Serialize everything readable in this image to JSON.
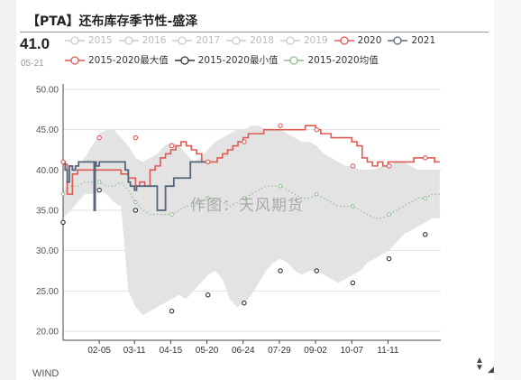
{
  "header": {
    "title": "【PTA】还布库存季节性-盛泽",
    "current_value": "41.0",
    "current_date": "05-21"
  },
  "legend": {
    "row1": [
      {
        "label": "2015",
        "color": "#cccccc",
        "active": false
      },
      {
        "label": "2016",
        "color": "#cccccc",
        "active": false
      },
      {
        "label": "2017",
        "color": "#cccccc",
        "active": false
      },
      {
        "label": "2018",
        "color": "#cccccc",
        "active": false
      },
      {
        "label": "2019",
        "color": "#cccccc",
        "active": false
      },
      {
        "label": "2020",
        "color": "#e05a55",
        "active": true
      },
      {
        "label": "2021",
        "color": "#5a6b7b",
        "active": true
      }
    ],
    "row2": [
      {
        "label": "2015-2020最大值",
        "color": "#e05a55",
        "active": true
      },
      {
        "label": "2015-2020最小值",
        "color": "#333333",
        "active": true
      },
      {
        "label": "2015-2020均值",
        "color": "#8fbf8f",
        "active": true
      }
    ]
  },
  "watermark": "作图：天风期货",
  "source": "WIND",
  "colors": {
    "series_2020": "#e05a55",
    "series_2021": "#55667a",
    "max": "#e05a55",
    "min": "#333333",
    "mean": "#8fbf8f",
    "range_band": "#e3e3e3",
    "grid": "#e0e0e0"
  },
  "chart_data": {
    "type": "line",
    "y_range": [
      20,
      50
    ],
    "y_ticks": [
      "20.00",
      "25.00",
      "30.00",
      "35.00",
      "40.00",
      "45.00",
      "50.00"
    ],
    "x_ticks": [
      "02-05",
      "03-11",
      "04-15",
      "05-20",
      "06-24",
      "07-29",
      "09-02",
      "10-07",
      "11-11"
    ],
    "x_tick_day_of_year": [
      36,
      70,
      105,
      140,
      175,
      210,
      245,
      280,
      315
    ],
    "x_range_day_of_year": [
      1,
      366
    ],
    "band": {
      "day": [
        1,
        8,
        15,
        22,
        29,
        36,
        43,
        50,
        57,
        64,
        71,
        78,
        85,
        92,
        99,
        106,
        113,
        120,
        127,
        134,
        141,
        148,
        155,
        162,
        169,
        176,
        183,
        190,
        197,
        204,
        211,
        218,
        225,
        232,
        239,
        246,
        253,
        260,
        267,
        274,
        281,
        288,
        295,
        302,
        309,
        316,
        323,
        330,
        337,
        344,
        351,
        358,
        365
      ],
      "upper": [
        37.0,
        40.5,
        40.5,
        41.5,
        43.0,
        44.5,
        45.0,
        45.0,
        44.0,
        43.0,
        41.5,
        41.0,
        41.5,
        42.0,
        43.0,
        43.5,
        43.0,
        42.0,
        41.0,
        41.5,
        42.5,
        43.5,
        44.0,
        44.5,
        45.0,
        45.0,
        45.5,
        45.5,
        45.0,
        45.0,
        45.0,
        44.5,
        44.0,
        43.5,
        43.5,
        43.0,
        42.0,
        41.5,
        41.0,
        40.5,
        40.5,
        40.0,
        40.0,
        40.0,
        40.5,
        40.5,
        41.0,
        41.0,
        40.5,
        40.0,
        40.0,
        40.0,
        40.0
      ],
      "lower": [
        34.0,
        35.0,
        36.0,
        37.0,
        37.0,
        37.5,
        37.0,
        36.0,
        35.5,
        25.0,
        23.0,
        22.0,
        22.5,
        23.0,
        23.5,
        24.0,
        24.5,
        24.0,
        25.0,
        26.0,
        27.0,
        27.5,
        26.5,
        24.0,
        23.0,
        23.5,
        24.5,
        26.0,
        27.5,
        28.5,
        29.0,
        28.5,
        27.5,
        27.0,
        27.5,
        27.5,
        27.0,
        26.5,
        26.0,
        26.5,
        27.0,
        27.5,
        28.5,
        29.0,
        29.5,
        30.0,
        31.0,
        32.0,
        32.5,
        33.0,
        33.5,
        34.0,
        34.0
      ]
    },
    "series": [
      {
        "name": "2020",
        "day": [
          1,
          5,
          10,
          15,
          22,
          29,
          36,
          43,
          50,
          57,
          64,
          71,
          75,
          80,
          85,
          90,
          95,
          100,
          105,
          110,
          115,
          120,
          125,
          130,
          135,
          140,
          145,
          150,
          155,
          160,
          165,
          170,
          175,
          180,
          185,
          190,
          195,
          200,
          205,
          210,
          215,
          220,
          225,
          230,
          235,
          240,
          245,
          250,
          255,
          260,
          265,
          270,
          275,
          280,
          285,
          290,
          295,
          300,
          305,
          310,
          315,
          320,
          325,
          330,
          335,
          340,
          345,
          350,
          355,
          360,
          365
        ],
        "values": [
          40.7,
          37.0,
          39.5,
          40.0,
          40.0,
          40.0,
          40.0,
          40.0,
          40.0,
          39.5,
          39.0,
          38.0,
          38.5,
          38.0,
          40.0,
          40.5,
          41.5,
          42.0,
          42.5,
          43.0,
          43.5,
          43.0,
          42.5,
          42.0,
          41.0,
          41.0,
          41.0,
          41.5,
          42.0,
          42.5,
          43.0,
          43.5,
          44.0,
          44.5,
          44.5,
          44.5,
          45.0,
          45.0,
          45.0,
          45.0,
          45.0,
          45.0,
          45.0,
          45.0,
          45.5,
          45.5,
          45.0,
          44.5,
          44.5,
          44.0,
          44.0,
          44.0,
          44.0,
          43.5,
          43.0,
          41.5,
          41.0,
          40.5,
          41.0,
          40.5,
          41.0,
          41.0,
          41.0,
          41.0,
          41.0,
          41.5,
          41.5,
          41.5,
          41.5,
          41.0,
          41.0
        ]
      },
      {
        "name": "2021",
        "day": [
          1,
          3,
          5,
          7,
          10,
          13,
          16,
          19,
          22,
          25,
          28,
          30,
          31,
          32,
          33,
          36,
          40,
          44,
          48,
          52,
          55,
          58,
          61,
          64,
          66,
          68,
          70,
          72,
          76,
          80,
          84,
          88,
          92,
          96,
          100,
          104,
          108,
          112,
          116,
          120,
          124,
          128,
          132,
          136,
          140,
          141
        ],
        "values": [
          41.0,
          40.0,
          38.5,
          40.5,
          40.0,
          40.5,
          41.0,
          41.0,
          41.0,
          41.0,
          41.0,
          41.0,
          35.0,
          41.0,
          40.5,
          41.0,
          41.0,
          41.0,
          41.0,
          41.0,
          41.0,
          41.0,
          40.0,
          38.5,
          38.0,
          38.0,
          37.5,
          38.0,
          38.0,
          38.0,
          38.0,
          38.0,
          35.0,
          35.0,
          38.0,
          38.0,
          39.0,
          39.0,
          39.0,
          39.0,
          41.0,
          41.0,
          41.0,
          41.0,
          41.0,
          41.0
        ]
      },
      {
        "name": "2015-2020最大值",
        "day": [
          1,
          36,
          71,
          106,
          141,
          176,
          211,
          246,
          281,
          316,
          351
        ],
        "values": [
          41.0,
          44.0,
          44.0,
          43.0,
          41.0,
          43.5,
          45.5,
          45.0,
          40.5,
          40.5,
          41.5
        ]
      },
      {
        "name": "2015-2020最小值",
        "day": [
          1,
          36,
          71,
          106,
          141,
          176,
          211,
          246,
          281,
          316,
          351
        ],
        "values": [
          33.5,
          37.5,
          35.0,
          22.5,
          24.5,
          23.5,
          27.5,
          27.5,
          26.0,
          29.0,
          32.0
        ]
      },
      {
        "name": "2015-2020均值",
        "day": [
          1,
          8,
          15,
          22,
          29,
          36,
          43,
          50,
          57,
          64,
          71,
          78,
          85,
          92,
          99,
          106,
          113,
          120,
          127,
          134,
          141,
          148,
          155,
          162,
          169,
          176,
          183,
          190,
          197,
          204,
          211,
          218,
          225,
          232,
          239,
          246,
          253,
          260,
          267,
          274,
          281,
          288,
          295,
          302,
          309,
          316,
          323,
          330,
          337,
          344,
          351,
          358,
          365
        ],
        "values": [
          37.0,
          38.0,
          38.0,
          38.5,
          38.5,
          38.5,
          38.0,
          38.0,
          38.5,
          37.5,
          36.0,
          35.0,
          34.5,
          34.5,
          34.5,
          34.5,
          35.0,
          35.5,
          35.5,
          36.0,
          36.5,
          36.5,
          36.0,
          35.5,
          36.0,
          36.5,
          37.0,
          37.5,
          38.0,
          38.0,
          38.0,
          37.5,
          37.0,
          36.5,
          36.5,
          37.0,
          36.5,
          36.0,
          35.5,
          35.5,
          35.5,
          35.0,
          34.5,
          34.0,
          34.0,
          34.5,
          35.0,
          35.5,
          36.0,
          36.5,
          36.5,
          37.0,
          37.0
        ]
      }
    ]
  }
}
